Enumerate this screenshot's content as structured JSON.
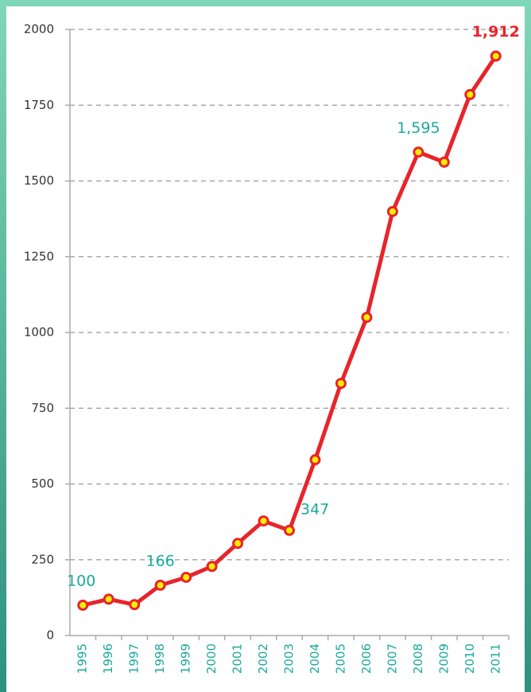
{
  "chart_data": {
    "type": "line",
    "categories": [
      "1995",
      "1996",
      "1997",
      "1998",
      "1999",
      "2000",
      "2001",
      "2002",
      "2003",
      "2004",
      "2005",
      "2006",
      "2007",
      "2008",
      "2009",
      "2010",
      "2011"
    ],
    "series": [
      {
        "color": "#e8242b",
        "marker_color": "#ffee00",
        "values": [
          100,
          120,
          102,
          166,
          192,
          228,
          304,
          378,
          347,
          580,
          832,
          1050,
          1399,
          1595,
          1562,
          1785,
          1912
        ],
        "value_labels": [
          "100",
          null,
          null,
          "166",
          null,
          null,
          null,
          null,
          "347",
          null,
          null,
          null,
          null,
          "1,595",
          null,
          null,
          "1,912"
        ],
        "value_label_colors": [
          "#1aa99c",
          null,
          null,
          "#1aa99c",
          null,
          null,
          null,
          null,
          "#1aa99c",
          null,
          null,
          null,
          null,
          "#1aa99c",
          null,
          null,
          "#e8242b"
        ]
      }
    ],
    "ylim": [
      0,
      2000
    ],
    "yticks": [
      0,
      250,
      500,
      750,
      1000,
      1250,
      1500,
      1750,
      2000
    ],
    "grid": true
  }
}
